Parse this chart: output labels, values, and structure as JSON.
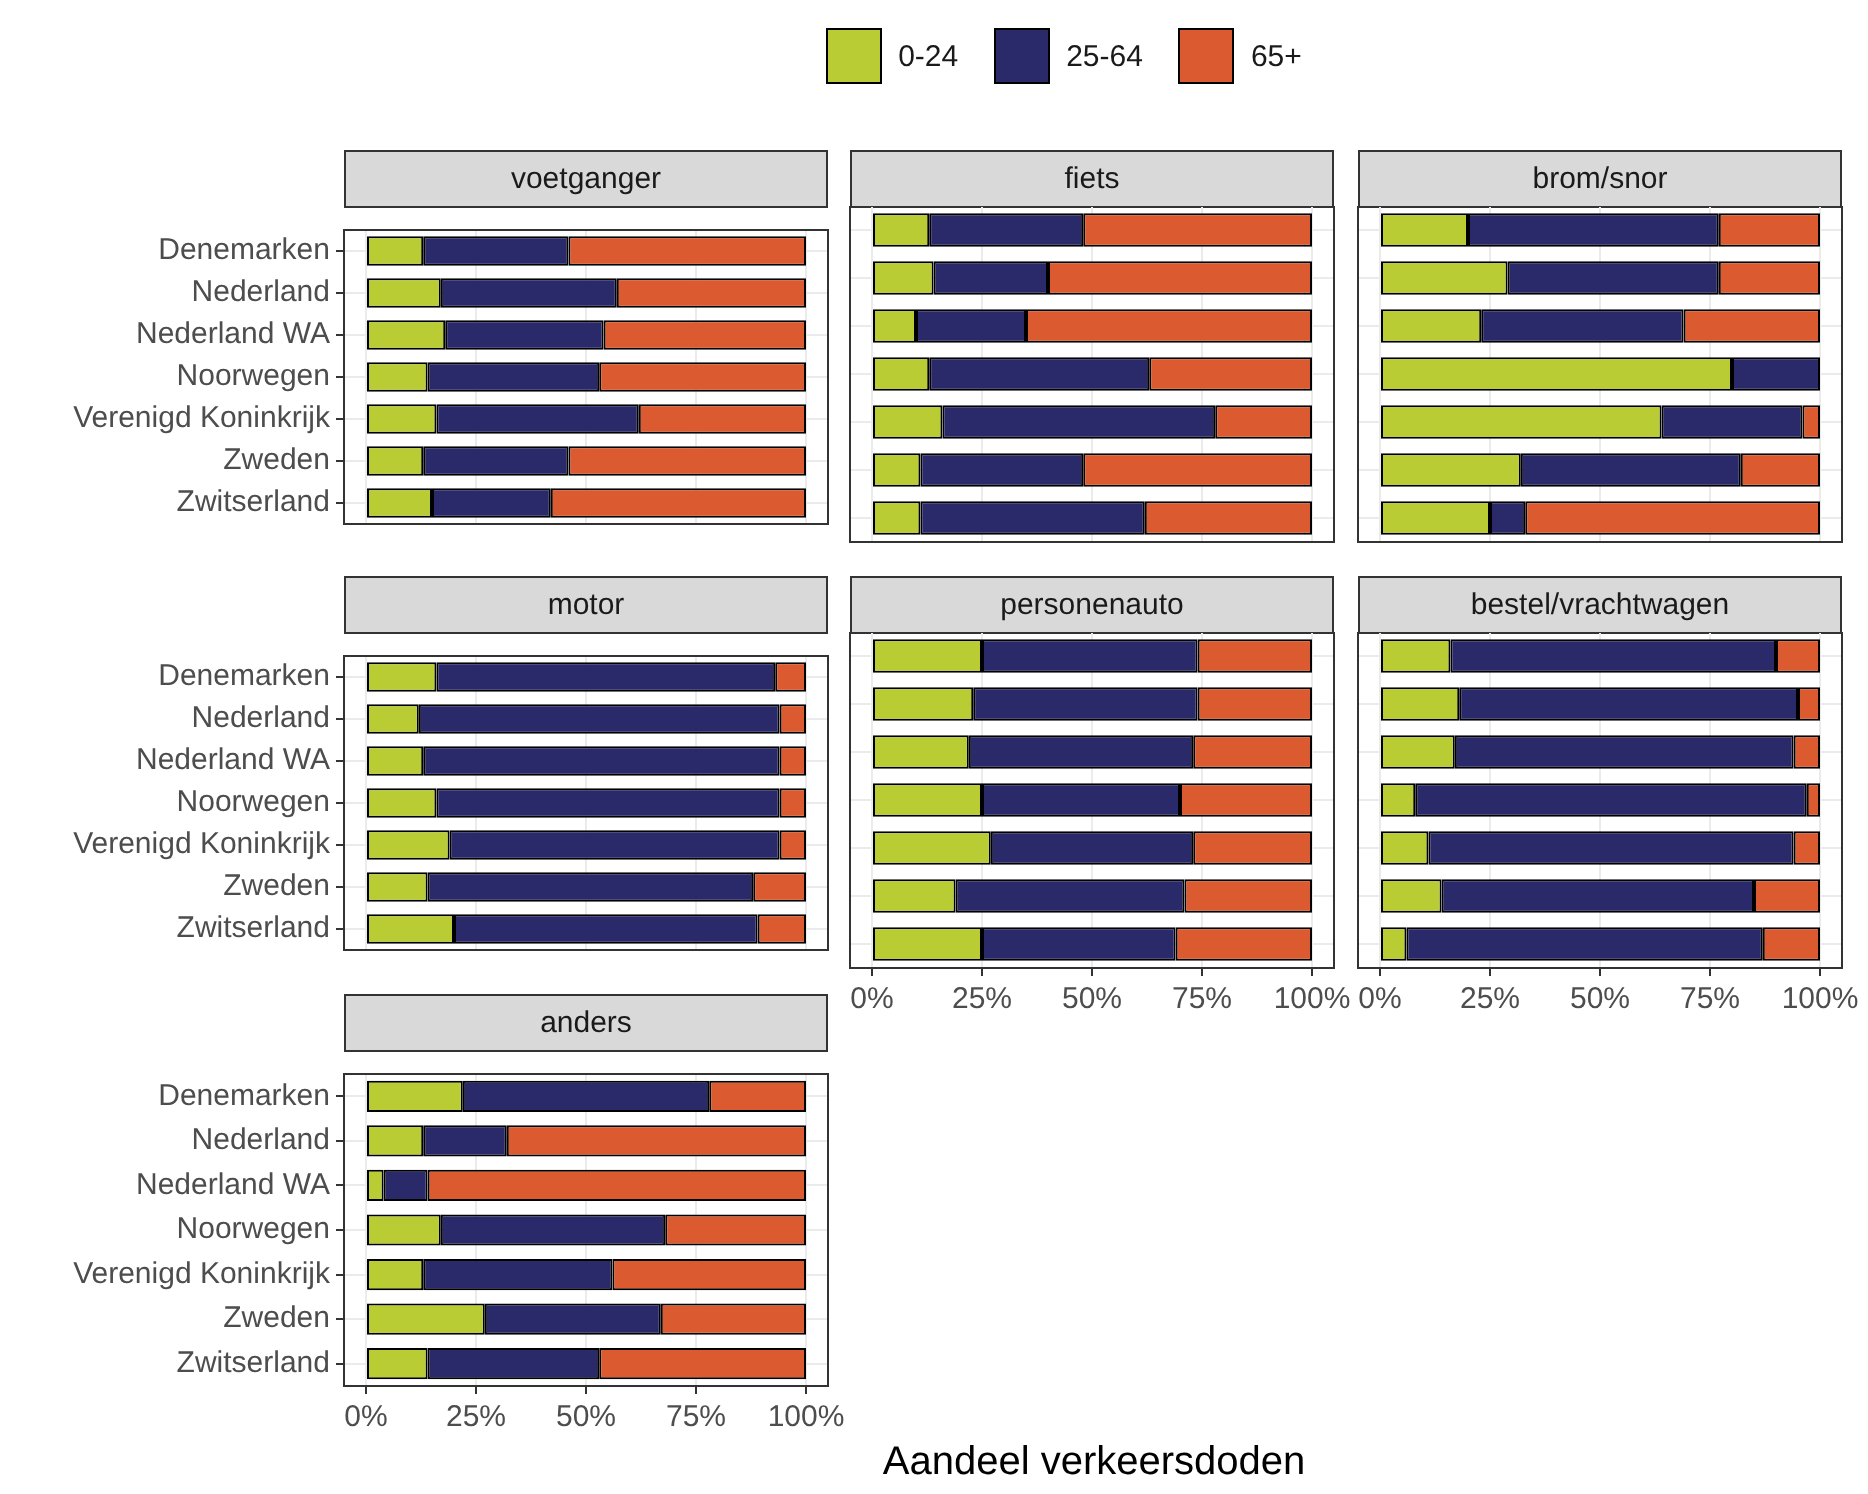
{
  "chart_data": [
    {
      "type": "bar",
      "title": "voetganger",
      "orientation": "horizontal",
      "stacked": true,
      "grid": true,
      "legend": "top",
      "tick_labels": "y",
      "categories": [
        "Denemarken",
        "Nederland",
        "Nederland WA",
        "Noorwegen",
        "Verenigd Koninkrijk",
        "Zweden",
        "Zwitserland"
      ],
      "xlim": [
        -5,
        105
      ],
      "xticks": [
        {
          "value": 0,
          "label": null
        },
        {
          "value": 25,
          "label": null
        },
        {
          "value": 50,
          "label": null
        },
        {
          "value": 75,
          "label": null
        },
        {
          "value": 100,
          "label": null
        }
      ],
      "series": [
        {
          "name": "0-24",
          "color": "#b9cc33",
          "values": [
            13,
            17,
            18,
            14,
            16,
            13,
            15
          ]
        },
        {
          "name": "25-64",
          "color": "#2a2a6a",
          "values": [
            33,
            40,
            36,
            39,
            46,
            33,
            27
          ]
        },
        {
          "name": "65+",
          "color": "#dc5a2f",
          "values": [
            54,
            43,
            46,
            47,
            38,
            54,
            58
          ]
        }
      ]
    },
    {
      "type": "bar",
      "title": "fiets",
      "orientation": "horizontal",
      "stacked": true,
      "grid": true,
      "tick_labels": false,
      "categories": [
        null,
        null,
        null,
        null,
        null,
        null,
        null
      ],
      "xlim": [
        -5,
        105
      ],
      "xticks": [
        {
          "value": 0,
          "label": null
        },
        {
          "value": 25,
          "label": null
        },
        {
          "value": 50,
          "label": null
        },
        {
          "value": 75,
          "label": null
        },
        {
          "value": 100,
          "label": null
        }
      ],
      "series": [
        {
          "color": "#b9cc33",
          "values": [
            13,
            14,
            10,
            13,
            16,
            11,
            11
          ]
        },
        {
          "color": "#2a2a6a",
          "values": [
            35,
            26,
            25,
            50,
            62,
            37,
            51
          ]
        },
        {
          "color": "#dc5a2f",
          "values": [
            52,
            60,
            65,
            37,
            22,
            52,
            38
          ]
        }
      ]
    },
    {
      "type": "bar",
      "title": "brom/snor",
      "orientation": "horizontal",
      "stacked": true,
      "grid": true,
      "tick_labels": false,
      "categories": [
        null,
        null,
        null,
        null,
        null,
        null,
        null
      ],
      "xlim": [
        -5,
        105
      ],
      "xticks": [
        {
          "value": 0,
          "label": null
        },
        {
          "value": 25,
          "label": null
        },
        {
          "value": 50,
          "label": null
        },
        {
          "value": 75,
          "label": null
        },
        {
          "value": 100,
          "label": null
        }
      ],
      "series": [
        {
          "color": "#b9cc33",
          "values": [
            20,
            29,
            23,
            80,
            64,
            32,
            25
          ]
        },
        {
          "color": "#2a2a6a",
          "values": [
            57,
            48,
            46,
            20,
            32,
            50,
            8
          ]
        },
        {
          "color": "#dc5a2f",
          "values": [
            23,
            23,
            31,
            0,
            4,
            18,
            67
          ]
        }
      ]
    },
    {
      "type": "bar",
      "title": "motor",
      "orientation": "horizontal",
      "stacked": true,
      "grid": true,
      "tick_labels": "y",
      "categories": [
        "Denemarken",
        "Nederland",
        "Nederland WA",
        "Noorwegen",
        "Verenigd Koninkrijk",
        "Zweden",
        "Zwitserland"
      ],
      "xlim": [
        -5,
        105
      ],
      "xticks": [
        {
          "value": 0,
          "label": null
        },
        {
          "value": 25,
          "label": null
        },
        {
          "value": 50,
          "label": null
        },
        {
          "value": 75,
          "label": null
        },
        {
          "value": 100,
          "label": null
        }
      ],
      "series": [
        {
          "color": "#b9cc33",
          "values": [
            16,
            12,
            13,
            16,
            19,
            14,
            20
          ]
        },
        {
          "color": "#2a2a6a",
          "values": [
            77,
            82,
            81,
            78,
            75,
            74,
            69
          ]
        },
        {
          "color": "#dc5a2f",
          "values": [
            7,
            6,
            6,
            6,
            6,
            12,
            11
          ]
        }
      ]
    },
    {
      "type": "bar",
      "title": "personenauto",
      "orientation": "horizontal",
      "stacked": true,
      "grid": true,
      "tick_labels": "x",
      "categories": [
        null,
        null,
        null,
        null,
        null,
        null,
        null
      ],
      "xlim": [
        -5,
        105
      ],
      "xticks": [
        {
          "value": 0,
          "label": "0%"
        },
        {
          "value": 25,
          "label": "25%"
        },
        {
          "value": 50,
          "label": "50%"
        },
        {
          "value": 75,
          "label": "75%"
        },
        {
          "value": 100,
          "label": "100%"
        }
      ],
      "series": [
        {
          "color": "#b9cc33",
          "values": [
            25,
            23,
            22,
            25,
            27,
            19,
            25
          ]
        },
        {
          "color": "#2a2a6a",
          "values": [
            49,
            51,
            51,
            45,
            46,
            52,
            44
          ]
        },
        {
          "color": "#dc5a2f",
          "values": [
            26,
            26,
            27,
            30,
            27,
            29,
            31
          ]
        }
      ]
    },
    {
      "type": "bar",
      "title": "bestel/vrachtwagen",
      "orientation": "horizontal",
      "stacked": true,
      "grid": true,
      "tick_labels": "x",
      "categories": [
        null,
        null,
        null,
        null,
        null,
        null,
        null
      ],
      "xlim": [
        -5,
        105
      ],
      "xticks": [
        {
          "value": 0,
          "label": "0%"
        },
        {
          "value": 25,
          "label": "25%"
        },
        {
          "value": 50,
          "label": "50%"
        },
        {
          "value": 75,
          "label": "75%"
        },
        {
          "value": 100,
          "label": "100%"
        }
      ],
      "series": [
        {
          "color": "#b9cc33",
          "values": [
            16,
            18,
            17,
            8,
            11,
            14,
            6
          ]
        },
        {
          "color": "#2a2a6a",
          "values": [
            74,
            77,
            77,
            89,
            83,
            71,
            81
          ]
        },
        {
          "color": "#dc5a2f",
          "values": [
            10,
            5,
            6,
            3,
            6,
            15,
            13
          ]
        }
      ]
    },
    {
      "type": "bar",
      "title": "anders",
      "xlabel": "Aandeel verkeersdoden",
      "orientation": "horizontal",
      "stacked": true,
      "grid": true,
      "categories": [
        "Denemarken",
        "Nederland",
        "Nederland WA",
        "Noorwegen",
        "Verenigd Koninkrijk",
        "Zweden",
        "Zwitserland"
      ],
      "xlim": [
        -5,
        105
      ],
      "xticks": [
        {
          "value": 0,
          "label": "0%"
        },
        {
          "value": 25,
          "label": "25%"
        },
        {
          "value": 50,
          "label": "50%"
        },
        {
          "value": 75,
          "label": "75%"
        },
        {
          "value": 100,
          "label": "100%"
        }
      ],
      "series": [
        {
          "color": "#b9cc33",
          "values": [
            22,
            13,
            4,
            17,
            13,
            27,
            14
          ]
        },
        {
          "color": "#2a2a6a",
          "values": [
            56,
            19,
            10,
            51,
            43,
            40,
            39
          ]
        },
        {
          "color": "#dc5a2f",
          "values": [
            22,
            68,
            86,
            32,
            44,
            33,
            47
          ]
        }
      ]
    }
  ]
}
